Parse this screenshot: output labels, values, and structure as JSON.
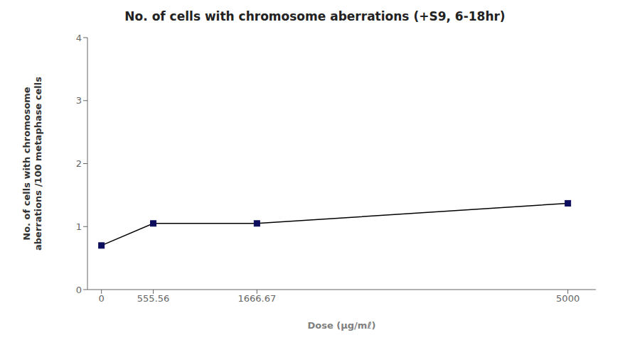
{
  "chart_data": {
    "type": "line",
    "title": "No. of cells with chromosome aberrations (+S9, 6-18hr)",
    "xlabel": "Dose (μg/mℓ)",
    "ylabel": "No. of cells with chromosome\naberrations /100 metaphase cells",
    "x": [
      0,
      555.56,
      1666.67,
      5000
    ],
    "values": [
      0.7,
      1.05,
      1.05,
      1.37
    ],
    "xlim": [
      -150,
      5300
    ],
    "xticks": [
      0,
      555.56,
      1666.67,
      5000
    ],
    "ylim": [
      0,
      4
    ],
    "yticks": [
      0,
      1,
      2,
      3,
      4
    ],
    "color": "#000000",
    "colors": [
      "#0d0d5e",
      "#0d0d5e",
      "#0d0d5e",
      "#0d0d5e"
    ],
    "marker": "square",
    "grid": false
  }
}
